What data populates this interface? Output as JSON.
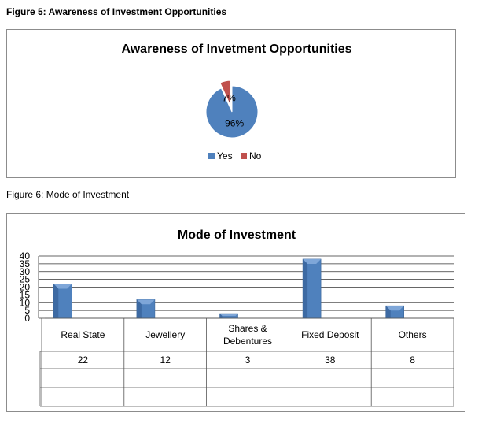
{
  "figure5_caption": "Figure 5: Awareness of Investment Opportunities",
  "figure6_caption": "Figure 6: Mode of Investment",
  "chart_data": [
    {
      "type": "pie",
      "title": "Awareness of Invetment Opportunities",
      "categories": [
        "Yes",
        "No"
      ],
      "values": [
        96,
        7
      ],
      "data_labels": [
        "96%",
        "7%"
      ],
      "colors": [
        "#4f81bd",
        "#c0504d"
      ],
      "legend": "bottom"
    },
    {
      "type": "bar",
      "title": "Mode of Investment",
      "categories": [
        "Real State",
        "Jewellery",
        "Shares & Debentures",
        "Fixed Deposit",
        "Others"
      ],
      "category_lines": [
        [
          "Real State"
        ],
        [
          "Jewellery"
        ],
        [
          "Shares &",
          "Debentures"
        ],
        [
          "Fixed Deposit"
        ],
        [
          "Others"
        ]
      ],
      "values": [
        22,
        12,
        3,
        38,
        8
      ],
      "ylim": [
        0,
        40
      ],
      "yticks": [
        0,
        5,
        10,
        15,
        20,
        25,
        30,
        35,
        40
      ],
      "grid": true,
      "bar_color": "#4f81bd",
      "data_table": true
    }
  ]
}
